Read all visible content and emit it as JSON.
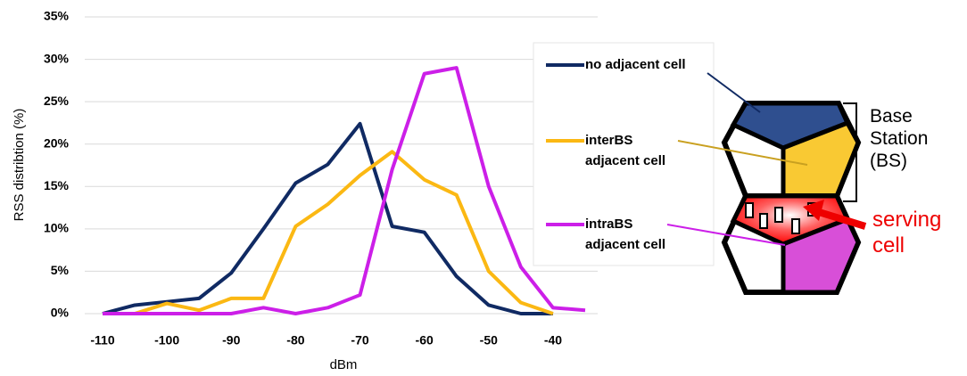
{
  "chart_data": {
    "type": "line",
    "x_label": "dBm",
    "y_label": "RSS distribtion (%)",
    "x": [
      -110,
      -105,
      -100,
      -95,
      -90,
      -85,
      -80,
      -75,
      -70,
      -65,
      -60,
      -55,
      -50,
      -45,
      -40,
      -35
    ],
    "series": [
      {
        "name": "no adjacent cell",
        "color": "#102a63",
        "values": [
          0,
          1,
          1.4,
          1.8,
          4.8,
          10,
          15.4,
          17.6,
          22.4,
          10.3,
          9.6,
          4.4,
          1,
          0,
          0,
          null
        ]
      },
      {
        "name": "interBS adjacent cell",
        "color": "#fbb813",
        "values": [
          0,
          0,
          1.2,
          0.4,
          1.8,
          1.8,
          10.3,
          12.9,
          16.3,
          19.1,
          15.8,
          14,
          5,
          1.3,
          0,
          null
        ]
      },
      {
        "name": "intraBS adjacent cell",
        "color": "#cc1fe8",
        "values": [
          0,
          0,
          0,
          0,
          0,
          0.7,
          0,
          0.7,
          2.2,
          17,
          28.3,
          29,
          15,
          5.5,
          0.7,
          0.4
        ]
      }
    ],
    "xlim": [
      -110,
      -35
    ],
    "xticks": [
      -110,
      -100,
      -90,
      -80,
      -70,
      -60,
      -50,
      -40
    ],
    "ylim": [
      0,
      35
    ],
    "yticks": [
      {
        "value": 0,
        "label": "0%"
      },
      {
        "value": 5,
        "label": "5%"
      },
      {
        "value": 10,
        "label": "10%"
      },
      {
        "value": 15,
        "label": "15%"
      },
      {
        "value": 20,
        "label": "20%"
      },
      {
        "value": 25,
        "label": "25%"
      },
      {
        "value": 30,
        "label": "30%"
      },
      {
        "value": 35,
        "label": "35%"
      }
    ],
    "grid": true,
    "annotations": [
      "Base Station (BS)",
      "serving cell"
    ]
  }
}
